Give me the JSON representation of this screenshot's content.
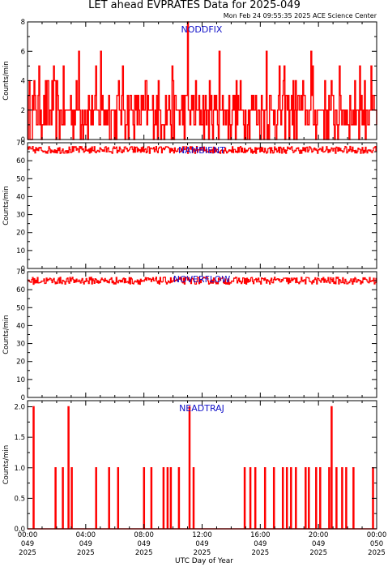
{
  "title": "LET ahead EVPRATES Data for 2025-049",
  "timestamp": "Mon Feb 24 09:55:35 2025 ACE Science Center",
  "xlabel": "UTC Day of Year",
  "colors": {
    "trace": "#ff0000",
    "panel_label": "#1010c8",
    "axes": "#000000"
  },
  "x_ticks": [
    {
      "time": "00:00",
      "doy": "049",
      "year": "2025"
    },
    {
      "time": "04:00",
      "doy": "049",
      "year": "2025"
    },
    {
      "time": "08:00",
      "doy": "049",
      "year": "2025"
    },
    {
      "time": "12:00",
      "doy": "049",
      "year": "2025"
    },
    {
      "time": "16:00",
      "doy": "049",
      "year": "2025"
    },
    {
      "time": "20:00",
      "doy": "049",
      "year": "2025"
    },
    {
      "time": "00:00",
      "doy": "050",
      "year": "2025"
    }
  ],
  "chart_data": [
    {
      "type": "line",
      "name": "NODDFIX",
      "ylabel": "Counts/min",
      "xlim": [
        0,
        24
      ],
      "ylim": [
        0,
        8
      ],
      "yticks": [
        "0",
        "2",
        "4",
        "6",
        "8"
      ],
      "baseline": 2,
      "spread": 1,
      "spikes": [
        [
          3.5,
          6
        ],
        [
          5.0,
          6
        ],
        [
          11.0,
          8
        ],
        [
          13.2,
          6
        ],
        [
          16.4,
          6
        ],
        [
          19.5,
          6
        ],
        [
          22.8,
          5
        ]
      ]
    },
    {
      "type": "line",
      "name": "NAMBIENT",
      "ylabel": "Counts/min",
      "xlim": [
        0,
        24
      ],
      "ylim": [
        0,
        70
      ],
      "yticks": [
        "0",
        "10",
        "20",
        "30",
        "40",
        "50",
        "60",
        "70"
      ],
      "baseline": 66,
      "spread": 2
    },
    {
      "type": "line",
      "name": "NOVERFLOW",
      "ylabel": "Counts/min",
      "xlim": [
        0,
        24
      ],
      "ylim": [
        0,
        70
      ],
      "yticks": [
        "0",
        "10",
        "20",
        "30",
        "40",
        "50",
        "60",
        "70"
      ],
      "baseline": 65,
      "spread": 2
    },
    {
      "type": "line",
      "name": "NEADTRAJ",
      "ylabel": "Counts/min",
      "xlim": [
        0,
        24
      ],
      "ylim": [
        0,
        2.1
      ],
      "yticks": [
        "0.0",
        "0.5",
        "1.0",
        "1.5",
        "2.0"
      ],
      "events": [
        [
          0.4,
          2
        ],
        [
          1.9,
          1
        ],
        [
          2.4,
          1
        ],
        [
          2.8,
          2
        ],
        [
          3.0,
          1
        ],
        [
          4.7,
          1
        ],
        [
          5.6,
          1
        ],
        [
          6.2,
          1
        ],
        [
          8.0,
          1
        ],
        [
          8.5,
          1
        ],
        [
          9.3,
          1
        ],
        [
          9.6,
          1
        ],
        [
          9.8,
          1
        ],
        [
          10.4,
          1
        ],
        [
          11.1,
          2
        ],
        [
          11.4,
          1
        ],
        [
          14.9,
          1
        ],
        [
          15.3,
          1
        ],
        [
          15.6,
          1
        ],
        [
          16.3,
          1
        ],
        [
          16.9,
          1
        ],
        [
          17.5,
          1
        ],
        [
          17.8,
          1
        ],
        [
          18.1,
          1
        ],
        [
          18.4,
          1
        ],
        [
          19.1,
          1
        ],
        [
          19.3,
          1
        ],
        [
          19.8,
          1
        ],
        [
          20.1,
          1
        ],
        [
          20.7,
          1
        ],
        [
          20.9,
          2
        ],
        [
          21.2,
          1
        ],
        [
          21.6,
          1
        ],
        [
          21.9,
          1
        ],
        [
          22.4,
          1
        ],
        [
          23.7,
          1
        ]
      ]
    }
  ]
}
